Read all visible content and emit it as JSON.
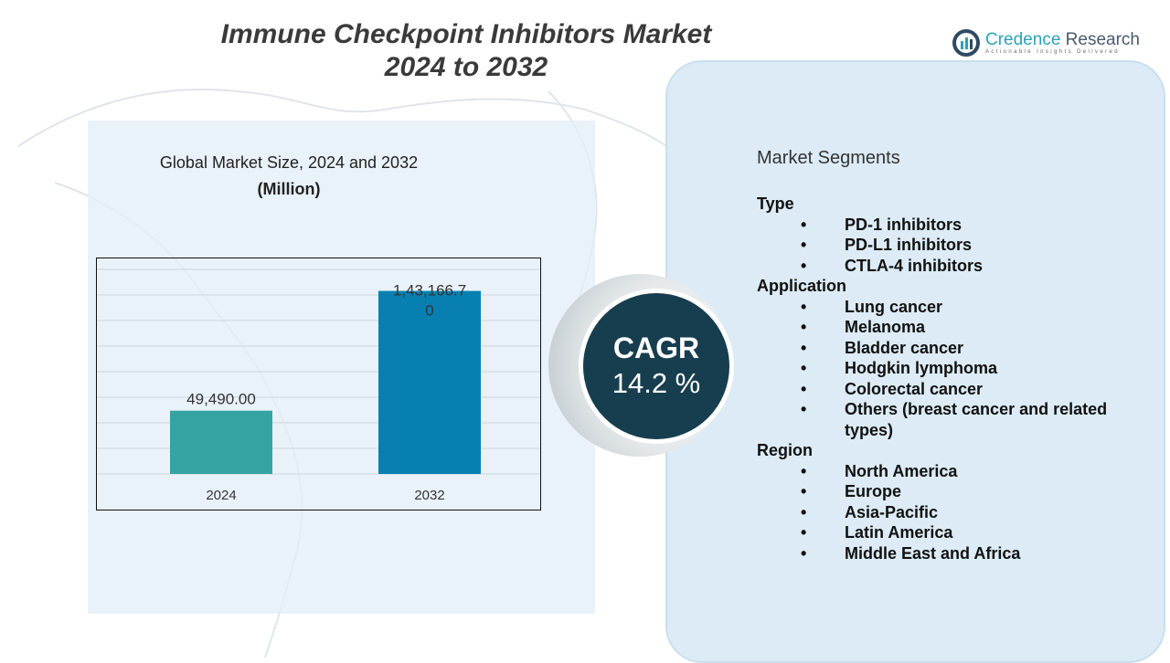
{
  "header": {
    "title_line1": "Immune Checkpoint Inhibitors Market",
    "title_line2": "2024 to 2032"
  },
  "logo": {
    "name_part1": "Credence",
    "name_part2": " Research",
    "tagline": "Actionable Insights Delivered"
  },
  "chart_data": {
    "type": "bar",
    "title": "Global Market Size, 2024 and 2032",
    "subtitle": "(Million)",
    "categories": [
      "2024",
      "2032"
    ],
    "values": [
      49490.0,
      143166.7
    ],
    "data_labels": [
      "49,490.00",
      "1,43,166.70"
    ],
    "ylim": [
      0,
      160000
    ],
    "grid": true,
    "colors": [
      "#36a3a3",
      "#0780b1"
    ]
  },
  "cagr": {
    "label": "CAGR",
    "value": "14.2 %"
  },
  "segments": {
    "title": "Market Segments",
    "groups": [
      {
        "name": "Type",
        "items": [
          "PD-1 inhibitors",
          "PD-L1 inhibitors",
          "CTLA-4 inhibitors"
        ]
      },
      {
        "name": "Application",
        "items": [
          "Lung cancer",
          "Melanoma",
          "Bladder cancer",
          "Hodgkin lymphoma",
          "Colorectal cancer",
          "Others (breast cancer and related types)"
        ]
      },
      {
        "name": "Region",
        "items": [
          "North America",
          "Europe",
          "Asia-Pacific",
          "Latin America",
          "Middle East and Africa"
        ]
      }
    ]
  }
}
